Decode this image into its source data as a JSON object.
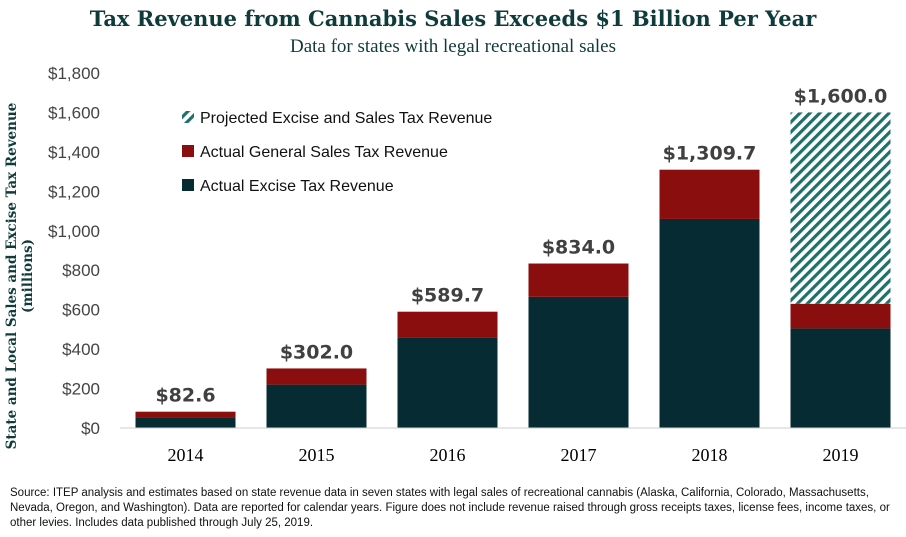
{
  "chart_data": {
    "type": "bar",
    "stacked": true,
    "title": "Tax Revenue from Cannabis Sales Exceeds $1 Billion Per Year",
    "subtitle": "Data for states with legal recreational sales",
    "ylabel": "State and Local Sales and Excise Tax Revenue (millions)",
    "xlabel": "",
    "ylim": [
      0,
      1800
    ],
    "yticks": [
      0,
      200,
      400,
      600,
      800,
      1000,
      1200,
      1400,
      1600,
      1800
    ],
    "ytick_labels": [
      "$0",
      "$200",
      "$400",
      "$600",
      "$800",
      "$1,000",
      "$1,200",
      "$1,400",
      "$1,600",
      "$1,800"
    ],
    "categories": [
      "2014",
      "2015",
      "2016",
      "2017",
      "2018",
      "2019"
    ],
    "series": [
      {
        "name": "Actual Excise Tax Revenue",
        "color": "#062b32",
        "values": [
          55,
          220,
          460,
          665,
          1060,
          505
        ]
      },
      {
        "name": "Actual General Sales Tax Revenue",
        "color": "#8b0e0e",
        "values": [
          27.6,
          82,
          129.7,
          169,
          249.7,
          125
        ]
      },
      {
        "name": "Projected Excise and Sales Tax Revenue",
        "color": "#1f6f6a",
        "pattern": "hatched",
        "values": [
          0,
          0,
          0,
          0,
          0,
          970
        ]
      }
    ],
    "totals": [
      82.6,
      302.0,
      589.7,
      834.0,
      1309.7,
      1600.0
    ],
    "total_labels": [
      "$82.6",
      "$302.0",
      "$589.7",
      "$834.0",
      "$1,309.7",
      "$1,600.0"
    ],
    "legend_order": [
      "Projected Excise and Sales Tax Revenue",
      "Actual General Sales Tax Revenue",
      "Actual Excise Tax Revenue"
    ],
    "legend_position": "top-left",
    "grid": false
  },
  "footnote": "Source: ITEP analysis and estimates based on state revenue data in seven states with legal sales of recreational cannabis (Alaska, California, Colorado, Massachusetts, Nevada, Oregon, and Washington). Data are reported for calendar years. Figure does not include revenue raised through gross receipts taxes, license fees, income taxes, or other levies. Includes data published through July 25, 2019."
}
